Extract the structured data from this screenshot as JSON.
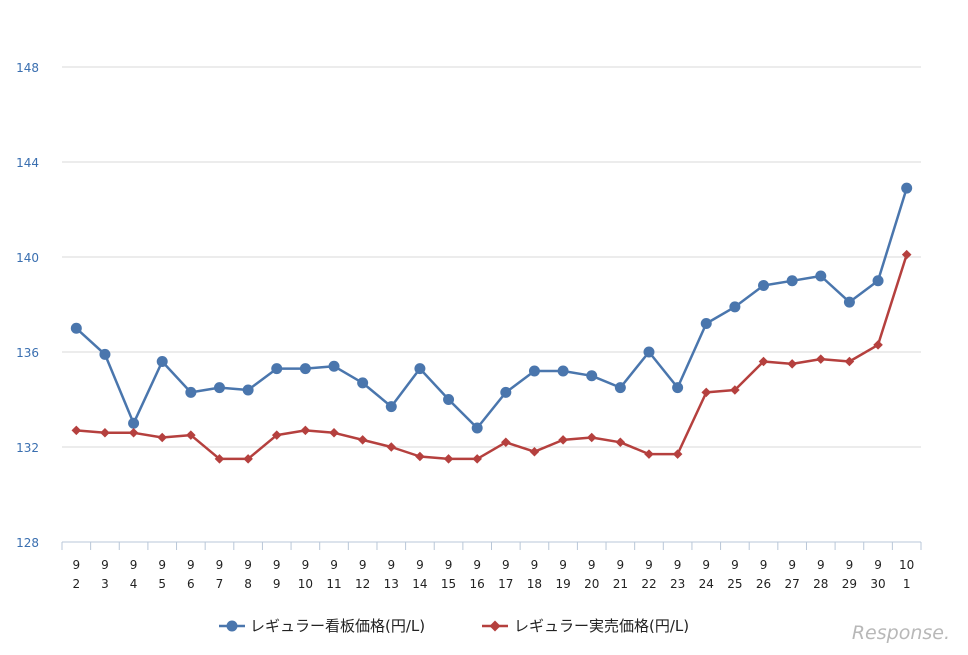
{
  "chart_data": {
    "type": "line",
    "categories": [
      [
        "9",
        "2"
      ],
      [
        "9",
        "3"
      ],
      [
        "9",
        "4"
      ],
      [
        "9",
        "5"
      ],
      [
        "9",
        "6"
      ],
      [
        "9",
        "7"
      ],
      [
        "9",
        "8"
      ],
      [
        "9",
        "9"
      ],
      [
        "9",
        "10"
      ],
      [
        "9",
        "11"
      ],
      [
        "9",
        "12"
      ],
      [
        "9",
        "13"
      ],
      [
        "9",
        "14"
      ],
      [
        "9",
        "15"
      ],
      [
        "9",
        "16"
      ],
      [
        "9",
        "17"
      ],
      [
        "9",
        "18"
      ],
      [
        "9",
        "19"
      ],
      [
        "9",
        "20"
      ],
      [
        "9",
        "21"
      ],
      [
        "9",
        "22"
      ],
      [
        "9",
        "23"
      ],
      [
        "9",
        "24"
      ],
      [
        "9",
        "25"
      ],
      [
        "9",
        "26"
      ],
      [
        "9",
        "27"
      ],
      [
        "9",
        "28"
      ],
      [
        "9",
        "29"
      ],
      [
        "9",
        "30"
      ],
      [
        "10",
        "1"
      ]
    ],
    "yticks": [
      "128",
      "132",
      "136",
      "140",
      "144",
      "148"
    ],
    "ylim": [
      128,
      148
    ],
    "grid": true,
    "legend_position": "bottom",
    "series": [
      {
        "name": "レギュラー看板価格(円/L)",
        "color": "#4a76ad",
        "marker": "circle",
        "values": [
          137.0,
          135.9,
          133.0,
          135.6,
          134.3,
          134.5,
          134.4,
          135.3,
          135.3,
          135.4,
          134.7,
          133.7,
          135.3,
          134.0,
          132.8,
          134.3,
          135.2,
          135.2,
          135.0,
          134.5,
          136.0,
          134.5,
          137.2,
          137.9,
          138.8,
          139.0,
          139.2,
          138.1,
          139.0,
          142.9
        ]
      },
      {
        "name": "レギュラー実売価格(円/L)",
        "color": "#b5403e",
        "marker": "diamond",
        "values": [
          132.7,
          132.6,
          132.6,
          132.4,
          132.5,
          131.5,
          131.5,
          132.5,
          132.7,
          132.6,
          132.3,
          132.0,
          131.6,
          131.5,
          131.5,
          132.2,
          131.8,
          132.3,
          132.4,
          132.2,
          131.7,
          131.7,
          134.3,
          134.4,
          135.6,
          135.5,
          135.7,
          135.6,
          136.3,
          140.1
        ]
      }
    ]
  },
  "watermark": "Response."
}
